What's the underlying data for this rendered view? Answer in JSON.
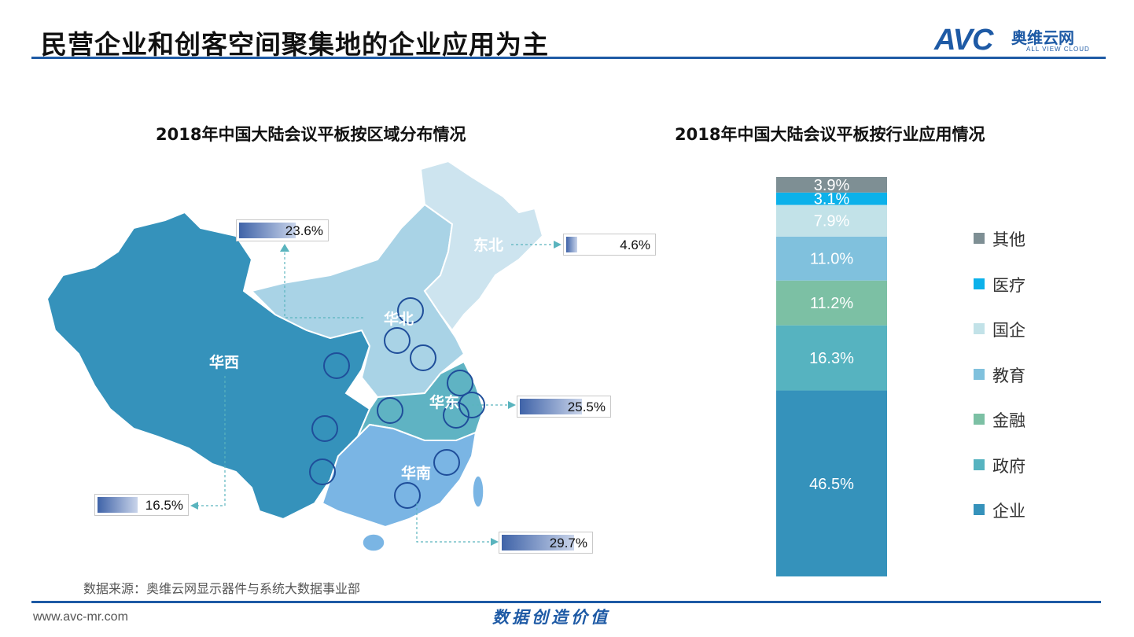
{
  "page": {
    "title": "民营企业和创客空间聚集地的企业应用为主",
    "source": "数据来源：奥维云网显示器件与系统大数据事业部",
    "footer_url": "www.avc-mr.com",
    "slogan": "数据创造价值",
    "logo": {
      "mark": "AVC",
      "name_cn": "奥维云网",
      "name_en": "ALL VIEW CLOUD"
    }
  },
  "colors": {
    "brand": "#1e5aa5",
    "region_huaxi": "#3592bb",
    "region_huabei": "#a9d3e6",
    "region_dongbei": "#cde4ef",
    "region_huadong": "#5fb3c3",
    "region_huanan": "#7ab5e4"
  },
  "chart_data": [
    {
      "type": "map",
      "title": "2018年中国大陆会议平板按区域分布情况",
      "regions": [
        {
          "name": "华北",
          "value": 23.6,
          "label": "23.6%"
        },
        {
          "name": "东北",
          "value": 4.6,
          "label": "4.6%"
        },
        {
          "name": "华东",
          "value": 25.5,
          "label": "25.5%"
        },
        {
          "name": "华西",
          "value": 16.5,
          "label": "16.5%"
        },
        {
          "name": "华南",
          "value": 29.7,
          "label": "29.7%"
        }
      ]
    },
    {
      "type": "bar",
      "stacked": true,
      "title": "2018年中国大陆会议平板按行业应用情况",
      "series": [
        {
          "name": "企业",
          "value": 46.5,
          "label": "46.5%",
          "color": "#3592bb"
        },
        {
          "name": "政府",
          "value": 16.3,
          "label": "16.3%",
          "color": "#56b3c0"
        },
        {
          "name": "金融",
          "value": 11.2,
          "label": "11.2%",
          "color": "#7cc0a4"
        },
        {
          "name": "教育",
          "value": 11.0,
          "label": "11.0%",
          "color": "#80c1dd"
        },
        {
          "name": "国企",
          "value": 7.9,
          "label": "7.9%",
          "color": "#c2e2e8"
        },
        {
          "name": "医疗",
          "value": 3.1,
          "label": "3.1%",
          "color": "#0cb1ea"
        },
        {
          "name": "其他",
          "value": 3.9,
          "label": "3.9%",
          "color": "#7e8f94"
        }
      ],
      "legend": [
        "其他",
        "医疗",
        "国企",
        "教育",
        "金融",
        "政府",
        "企业"
      ],
      "legend_position": "right"
    }
  ]
}
